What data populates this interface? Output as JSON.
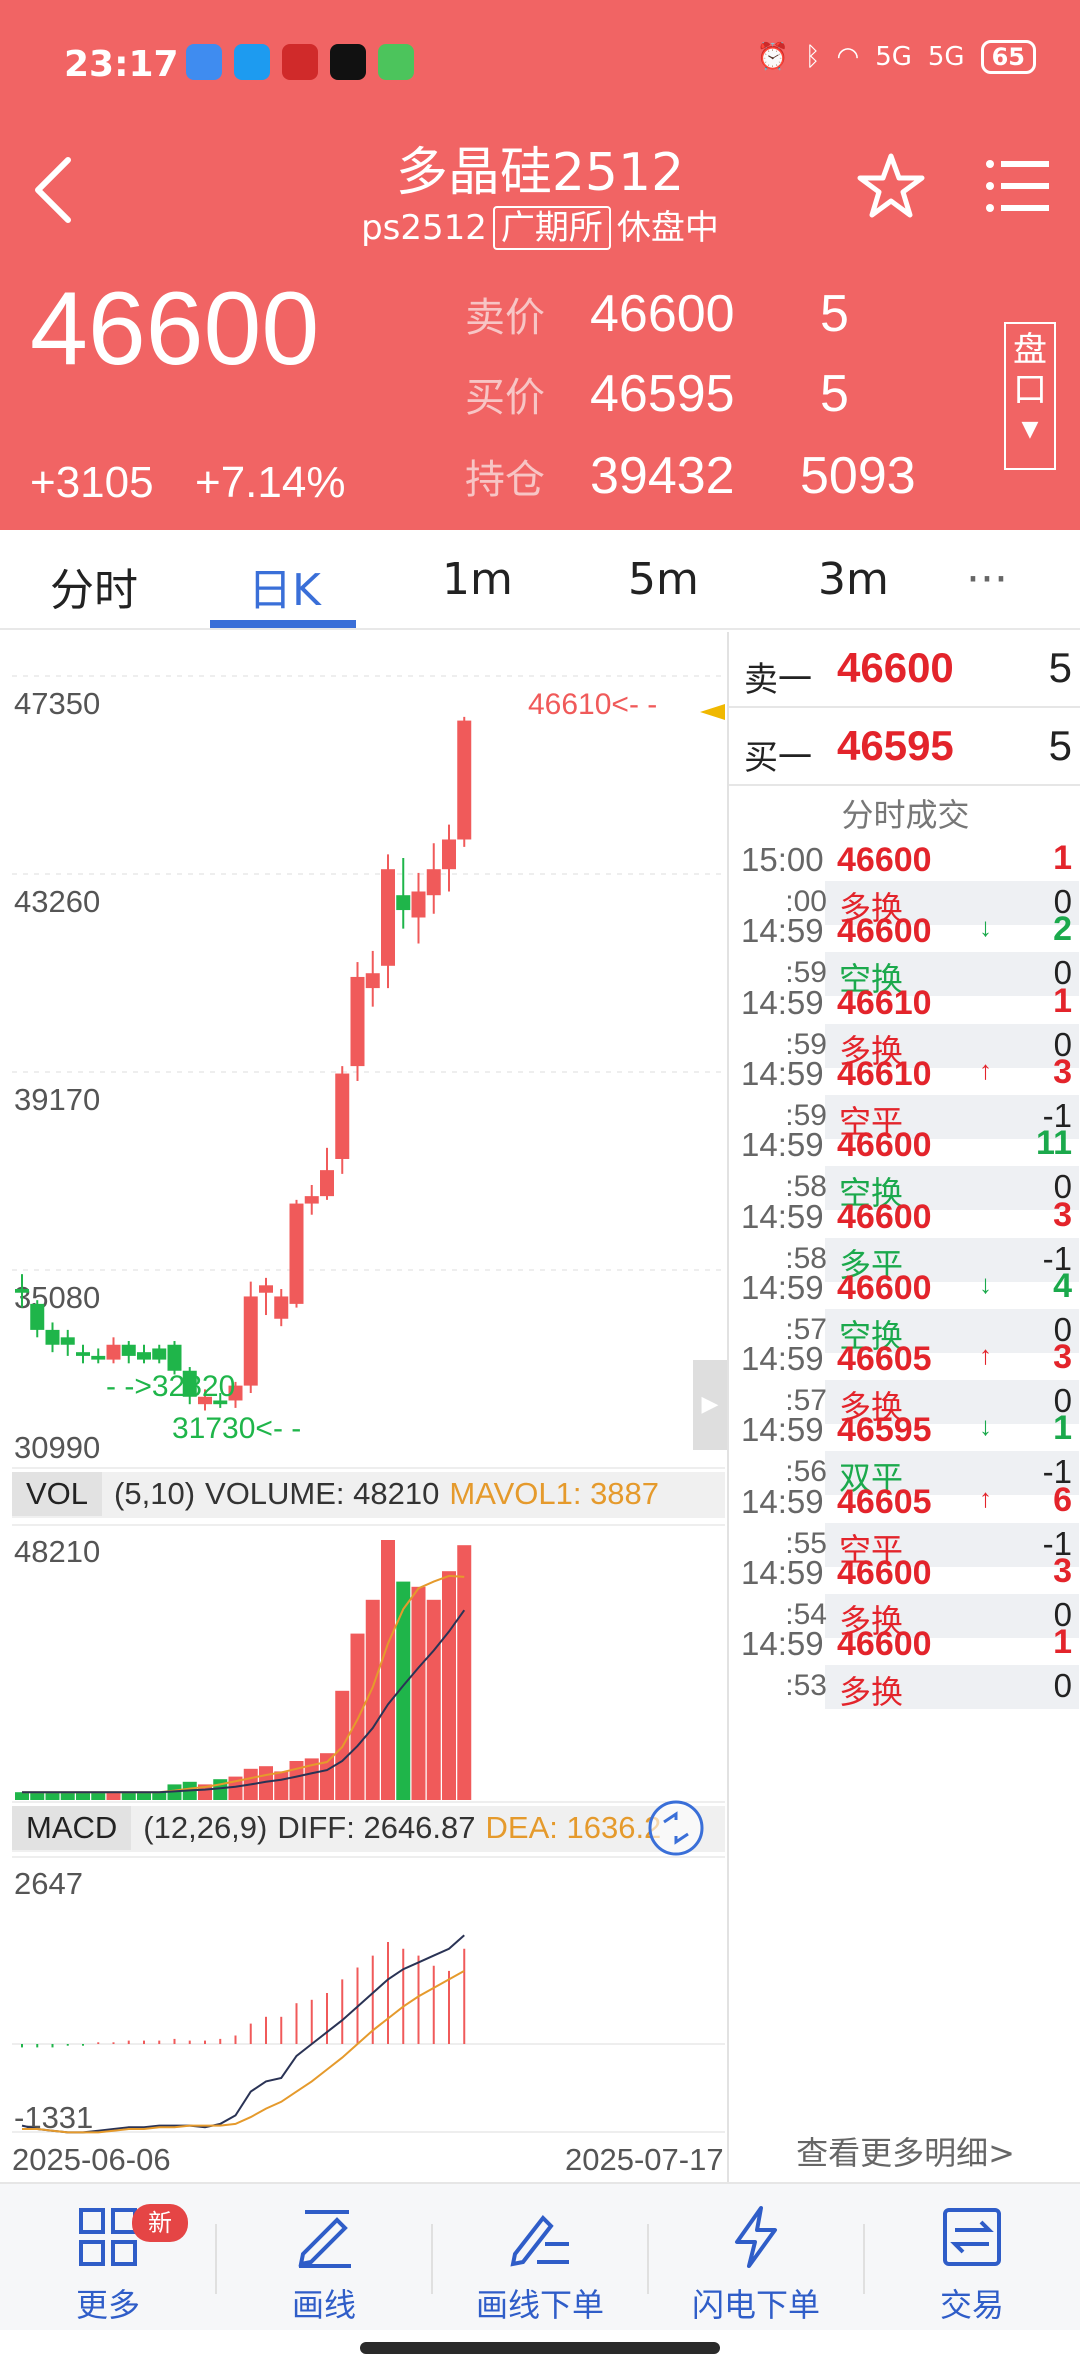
{
  "status_bar": {
    "time": "23:17",
    "network_1": "5G",
    "network_2": "5G",
    "battery": "65"
  },
  "header": {
    "title": "多晶硅2512",
    "code": "ps2512",
    "exchange": "广期所",
    "session": "休盘中",
    "last_price": "46600",
    "change": "+3105",
    "change_pct": "+7.14%",
    "ask_label": "卖价",
    "ask_price": "46600",
    "ask_qty": "5",
    "bid_label": "买价",
    "bid_price": "46595",
    "bid_qty": "5",
    "oi_label": "持仓",
    "oi_value": "39432",
    "oi_change": "5093",
    "pankou_label": "盘口"
  },
  "tabs": [
    "分时",
    "日K",
    "1m",
    "5m",
    "3m",
    "···"
  ],
  "active_tab": "日K",
  "kline": {
    "y_labels": [
      "47350",
      "43260",
      "39170",
      "35080",
      "30990"
    ],
    "high_marker": "46610<- -",
    "low_marker": "31730<- -",
    "mid_marker": "- ->32820",
    "date_start": "2025-06-06",
    "date_end": "2025-07-17"
  },
  "vol_bar": {
    "name": "VOL",
    "params": "(5,10)",
    "volume": "VOLUME: 48210",
    "mavol": "MAVOL1: 3887",
    "y_top": "48210"
  },
  "macd_bar": {
    "name": "MACD",
    "params": "(12,26,9)",
    "diff": "DIFF: 2646.87",
    "dea": "DEA: 1636.2",
    "y_top": "2647",
    "y_bottom": "-1331"
  },
  "order_book": {
    "sell_label": "卖一",
    "sell_price": "46600",
    "sell_qty": "5",
    "buy_label": "买一",
    "buy_price": "46595",
    "buy_qty": "5"
  },
  "trades_title": "分时成交",
  "trades": [
    {
      "time": "15:00",
      "sec": ":00",
      "price": "46600",
      "arrow": "",
      "qty": "1",
      "qty_color": "#e3242b",
      "type": "多换",
      "type_color": "#e3242b",
      "oi": "0"
    },
    {
      "time": "14:59",
      "sec": ":59",
      "price": "46600",
      "arrow": "↓",
      "qty": "2",
      "qty_color": "#1ba94c",
      "type": "空换",
      "type_color": "#1ba94c",
      "oi": "0"
    },
    {
      "time": "14:59",
      "sec": ":59",
      "price": "46610",
      "arrow": "",
      "qty": "1",
      "qty_color": "#e3242b",
      "type": "多换",
      "type_color": "#e3242b",
      "oi": "0"
    },
    {
      "time": "14:59",
      "sec": ":59",
      "price": "46610",
      "arrow": "↑",
      "qty": "3",
      "qty_color": "#e3242b",
      "type": "空平",
      "type_color": "#e3242b",
      "oi": "-1"
    },
    {
      "time": "14:59",
      "sec": ":58",
      "price": "46600",
      "arrow": "",
      "qty": "11",
      "qty_color": "#1ba94c",
      "type": "空换",
      "type_color": "#1ba94c",
      "oi": "0"
    },
    {
      "time": "14:59",
      "sec": ":58",
      "price": "46600",
      "arrow": "",
      "qty": "3",
      "qty_color": "#e3242b",
      "type": "多平",
      "type_color": "#1ba94c",
      "oi": "-1"
    },
    {
      "time": "14:59",
      "sec": ":57",
      "price": "46600",
      "arrow": "↓",
      "qty": "4",
      "qty_color": "#1ba94c",
      "type": "空换",
      "type_color": "#1ba94c",
      "oi": "0"
    },
    {
      "time": "14:59",
      "sec": ":57",
      "price": "46605",
      "arrow": "↑",
      "qty": "3",
      "qty_color": "#e3242b",
      "type": "多换",
      "type_color": "#e3242b",
      "oi": "0"
    },
    {
      "time": "14:59",
      "sec": ":56",
      "price": "46595",
      "arrow": "↓",
      "qty": "1",
      "qty_color": "#1ba94c",
      "type": "双平",
      "type_color": "#1ba94c",
      "oi": "-1"
    },
    {
      "time": "14:59",
      "sec": ":55",
      "price": "46605",
      "arrow": "↑",
      "qty": "6",
      "qty_color": "#e3242b",
      "type": "空平",
      "type_color": "#e3242b",
      "oi": "-1"
    },
    {
      "time": "14:59",
      "sec": ":54",
      "price": "46600",
      "arrow": "",
      "qty": "3",
      "qty_color": "#e3242b",
      "type": "多换",
      "type_color": "#e3242b",
      "oi": "0"
    },
    {
      "time": "14:59",
      "sec": ":53",
      "price": "46600",
      "arrow": "",
      "qty": "1",
      "qty_color": "#e3242b",
      "type": "多换",
      "type_color": "#e3242b",
      "oi": "0"
    }
  ],
  "more_link": "查看更多明细>",
  "bottom_nav": [
    {
      "label": "更多",
      "icon": "grid-icon"
    },
    {
      "label": "画线",
      "icon": "pencil-line-icon"
    },
    {
      "label": "画线下单",
      "icon": "pencil-order-icon"
    },
    {
      "label": "闪电下单",
      "icon": "lightning-icon"
    },
    {
      "label": "交易",
      "icon": "exchange-icon"
    }
  ],
  "new_badge": "新",
  "colors": {
    "header_bg": "#f16464",
    "up": "#f05a5a",
    "down": "#1fb54a",
    "accent": "#3a6fd8"
  }
}
